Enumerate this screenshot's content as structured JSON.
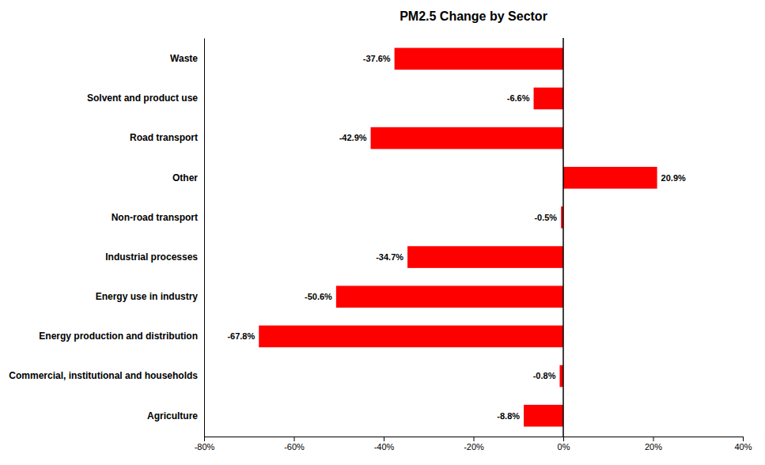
{
  "chart_data": {
    "type": "bar",
    "orientation": "horizontal",
    "title": "PM2.5 Change by Sector",
    "categories": [
      "Agriculture",
      "Commercial, institutional and households",
      "Energy production and distribution",
      "Energy use in industry",
      "Industrial processes",
      "Non-road transport",
      "Other",
      "Road transport",
      "Solvent and product use",
      "Waste"
    ],
    "values": [
      -8.8,
      -0.8,
      -67.8,
      -50.6,
      -34.7,
      -0.5,
      20.9,
      -42.9,
      -6.6,
      -37.6
    ],
    "value_labels": [
      "-8.8%",
      "-0.8%",
      "-67.8%",
      "-50.6%",
      "-34.7%",
      "-0.5%",
      "20.9%",
      "-42.9%",
      "-6.6%",
      "-37.6%"
    ],
    "data_labels": true,
    "color": "#ff0000",
    "xlim": [
      -80,
      40
    ],
    "xticks": [
      {
        "value": -80,
        "label": "-80%"
      },
      {
        "value": -60,
        "label": "-60%"
      },
      {
        "value": -40,
        "label": "-40%"
      },
      {
        "value": -20,
        "label": "-20%"
      },
      {
        "value": 0,
        "label": "0%"
      },
      {
        "value": 20,
        "label": "20%"
      },
      {
        "value": 40,
        "label": "40%"
      }
    ],
    "grid": false
  }
}
